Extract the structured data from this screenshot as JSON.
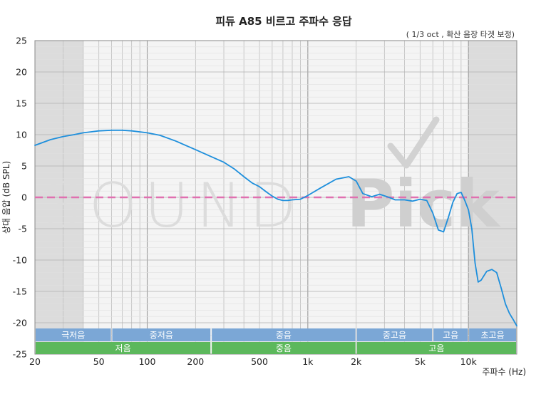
{
  "chart_data": {
    "type": "line",
    "title": "피듀 A85 비르고 주파수 응답",
    "subtitle": "( 1/3 oct , 확산 음장 타겟 보정)",
    "xlabel": "주파수 (Hz)",
    "ylabel": "상대 음압 (dB SPL)",
    "x_scale": "log",
    "xlim": [
      20,
      20000
    ],
    "ylim": [
      -25,
      25
    ],
    "x_ticks": [
      {
        "value": 20,
        "label": "20"
      },
      {
        "value": 50,
        "label": "50"
      },
      {
        "value": 100,
        "label": "100"
      },
      {
        "value": 200,
        "label": "200"
      },
      {
        "value": 500,
        "label": "500"
      },
      {
        "value": 1000,
        "label": "1k"
      },
      {
        "value": 2000,
        "label": "2k"
      },
      {
        "value": 5000,
        "label": "5k"
      },
      {
        "value": 10000,
        "label": "10k"
      }
    ],
    "y_ticks": [
      25,
      20,
      15,
      10,
      5,
      0,
      -5,
      -10,
      -15,
      -20,
      -25
    ],
    "grid": true,
    "reference_line": {
      "y": 0,
      "style": "dashed",
      "color": "#e070b0"
    },
    "shaded_ranges": [
      [
        20,
        40
      ],
      [
        10000,
        20000
      ]
    ],
    "watermark": "SOUNDPick",
    "series": [
      {
        "color": "#1e8fdc",
        "x": [
          20,
          25,
          30,
          35,
          40,
          50,
          60,
          70,
          80,
          100,
          120,
          150,
          200,
          250,
          300,
          350,
          400,
          450,
          500,
          550,
          600,
          650,
          700,
          750,
          800,
          900,
          1000,
          1200,
          1500,
          1800,
          2000,
          2200,
          2500,
          2800,
          3200,
          3500,
          4000,
          4500,
          5000,
          5500,
          6000,
          6500,
          7000,
          7500,
          8000,
          8500,
          9000,
          9500,
          10000,
          10500,
          11000,
          11500,
          12000,
          13000,
          14000,
          15000,
          16000,
          17000,
          18000,
          19000,
          20000
        ],
        "y": [
          8.3,
          9.2,
          9.7,
          10.0,
          10.3,
          10.6,
          10.7,
          10.7,
          10.6,
          10.3,
          9.9,
          9.0,
          7.6,
          6.5,
          5.6,
          4.5,
          3.3,
          2.3,
          1.7,
          0.9,
          0.2,
          -0.3,
          -0.5,
          -0.5,
          -0.4,
          -0.3,
          0.3,
          1.5,
          2.9,
          3.3,
          2.6,
          0.6,
          0.1,
          0.5,
          0.0,
          -0.4,
          -0.4,
          -0.6,
          -0.3,
          -0.5,
          -2.5,
          -5.2,
          -5.5,
          -3.2,
          -0.8,
          0.6,
          0.8,
          -0.5,
          -2.0,
          -5.0,
          -10.5,
          -13.5,
          -13.2,
          -11.8,
          -11.5,
          -12.0,
          -14.5,
          -17.0,
          -18.5,
          -19.5,
          -20.5
        ]
      }
    ],
    "bands_row1": [
      {
        "label": "극저음",
        "from": 20,
        "to": 60,
        "color": "#7ba7d6"
      },
      {
        "label": "중저음",
        "from": 60,
        "to": 250,
        "color": "#7ba7d6"
      },
      {
        "label": "중음",
        "from": 250,
        "to": 2000,
        "color": "#7ba7d6"
      },
      {
        "label": "중고음",
        "from": 2000,
        "to": 6000,
        "color": "#7ba7d6"
      },
      {
        "label": "고음",
        "from": 6000,
        "to": 10000,
        "color": "#7ba7d6"
      },
      {
        "label": "초고음",
        "from": 10000,
        "to": 20000,
        "color": "#7ba7d6"
      }
    ],
    "bands_row2": [
      {
        "label": "저음",
        "from": 20,
        "to": 250,
        "color": "#5cb85c"
      },
      {
        "label": "중음",
        "from": 250,
        "to": 2000,
        "color": "#5cb85c"
      },
      {
        "label": "고음",
        "from": 2000,
        "to": 20000,
        "color": "#5cb85c"
      }
    ]
  }
}
